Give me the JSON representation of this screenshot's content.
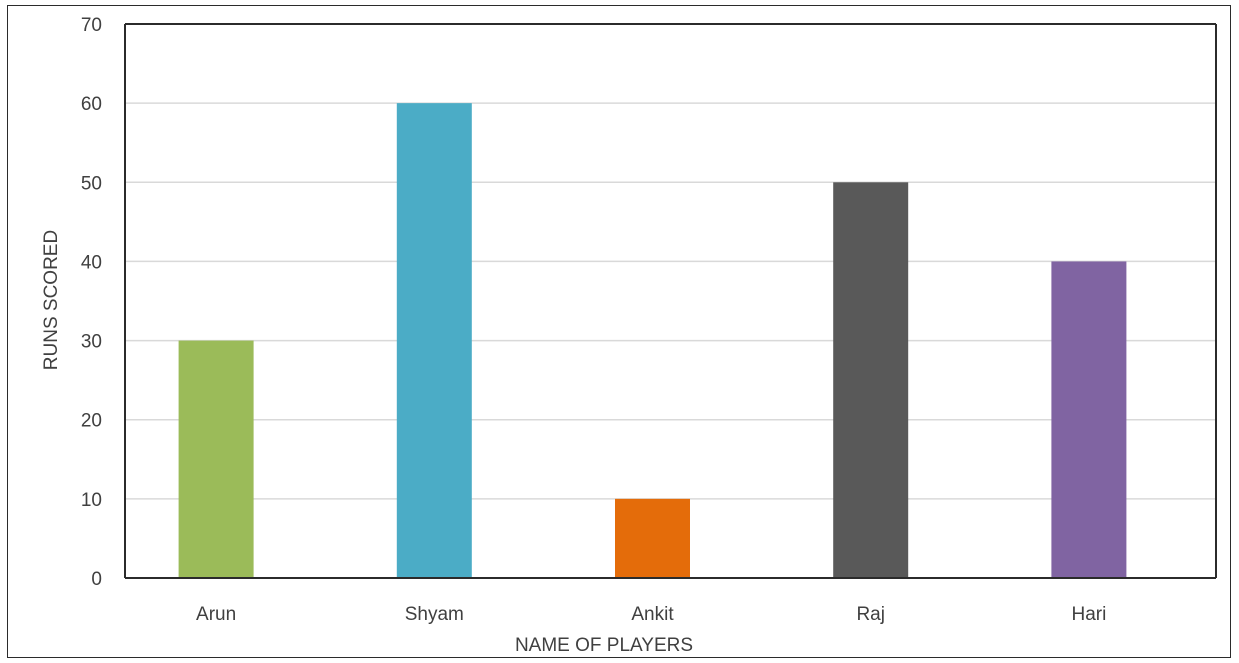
{
  "chart_data": {
    "type": "bar",
    "categories": [
      "Arun",
      "Shyam",
      "Ankit",
      "Raj",
      "Hari"
    ],
    "values": [
      30,
      60,
      10,
      50,
      40
    ],
    "bar_colors": [
      "#9BBB59",
      "#4BACC6",
      "#E46C0A",
      "#595959",
      "#8064A2"
    ],
    "xlabel": "NAME OF PLAYERS",
    "ylabel": "RUNS SCORED",
    "ylim": [
      0,
      70
    ],
    "yticks": [
      0,
      10,
      20,
      30,
      40,
      50,
      60,
      70
    ],
    "grid": true,
    "gridline_color": "#d9d9d9",
    "axis_color": "#2b2b2b"
  }
}
